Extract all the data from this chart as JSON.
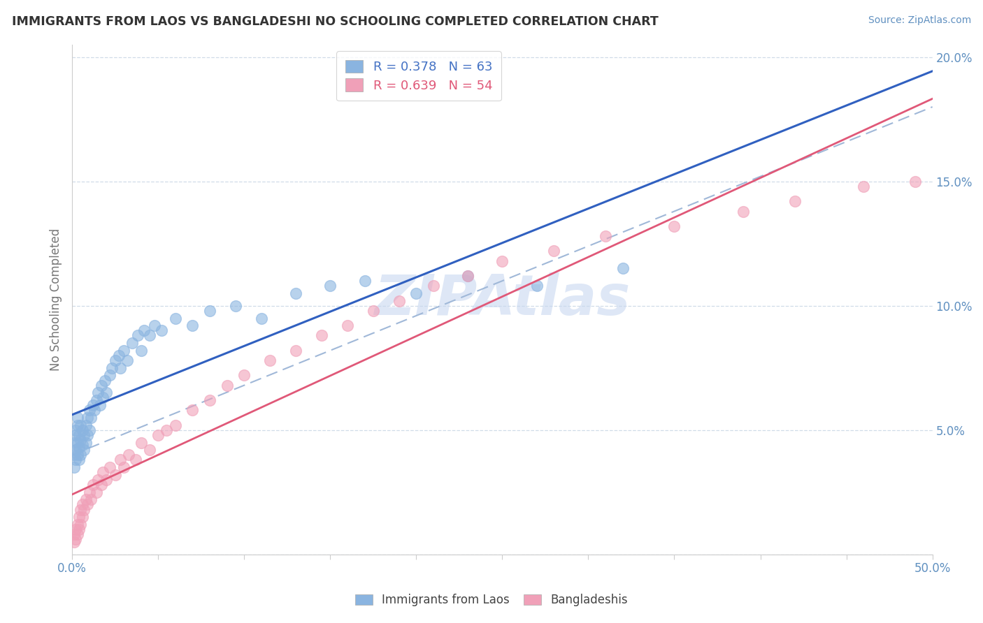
{
  "title": "IMMIGRANTS FROM LAOS VS BANGLADESHI NO SCHOOLING COMPLETED CORRELATION CHART",
  "source": "Source: ZipAtlas.com",
  "ylabel": "No Schooling Completed",
  "xlim": [
    0.0,
    0.5
  ],
  "ylim": [
    0.0,
    0.205
  ],
  "xticks": [
    0.0,
    0.05,
    0.1,
    0.15,
    0.2,
    0.25,
    0.3,
    0.35,
    0.4,
    0.45,
    0.5
  ],
  "yticks": [
    0.0,
    0.05,
    0.1,
    0.15,
    0.2
  ],
  "xtick_labels": [
    "0.0%",
    "",
    "",
    "",
    "",
    "",
    "",
    "",
    "",
    "",
    "50.0%"
  ],
  "ytick_labels_right": [
    "",
    "5.0%",
    "10.0%",
    "15.0%",
    "20.0%"
  ],
  "series1_label": "Immigrants from Laos",
  "series1_color": "#8ab4e0",
  "series1_line_color": "#3060c0",
  "series1_R": 0.378,
  "series1_N": 63,
  "series2_label": "Bangladeshis",
  "series2_color": "#f0a0b8",
  "series2_line_color": "#e05878",
  "series2_R": 0.639,
  "series2_N": 54,
  "dashed_line_color": "#a0b8d8",
  "watermark": "ZIPAtlas",
  "watermark_color": "#c8d8f0",
  "legend_color_1": "#4472c4",
  "legend_color_2": "#e05878",
  "title_color": "#333333",
  "axis_label_color": "#777777",
  "tick_color": "#6090c0",
  "grid_color": "#d0dce8",
  "laos_x": [
    0.001,
    0.001,
    0.001,
    0.002,
    0.002,
    0.002,
    0.002,
    0.003,
    0.003,
    0.003,
    0.003,
    0.004,
    0.004,
    0.004,
    0.005,
    0.005,
    0.005,
    0.006,
    0.006,
    0.007,
    0.007,
    0.008,
    0.008,
    0.009,
    0.009,
    0.01,
    0.01,
    0.011,
    0.012,
    0.013,
    0.014,
    0.015,
    0.016,
    0.017,
    0.018,
    0.019,
    0.02,
    0.022,
    0.023,
    0.025,
    0.027,
    0.028,
    0.03,
    0.032,
    0.035,
    0.038,
    0.04,
    0.042,
    0.045,
    0.048,
    0.052,
    0.06,
    0.07,
    0.08,
    0.095,
    0.11,
    0.13,
    0.15,
    0.17,
    0.2,
    0.23,
    0.27,
    0.32
  ],
  "laos_y": [
    0.035,
    0.04,
    0.045,
    0.038,
    0.042,
    0.048,
    0.05,
    0.04,
    0.045,
    0.052,
    0.055,
    0.038,
    0.043,
    0.048,
    0.04,
    0.046,
    0.052,
    0.044,
    0.05,
    0.042,
    0.048,
    0.045,
    0.052,
    0.048,
    0.055,
    0.05,
    0.058,
    0.055,
    0.06,
    0.058,
    0.062,
    0.065,
    0.06,
    0.068,
    0.063,
    0.07,
    0.065,
    0.072,
    0.075,
    0.078,
    0.08,
    0.075,
    0.082,
    0.078,
    0.085,
    0.088,
    0.082,
    0.09,
    0.088,
    0.092,
    0.09,
    0.095,
    0.092,
    0.098,
    0.1,
    0.095,
    0.105,
    0.108,
    0.11,
    0.105,
    0.112,
    0.108,
    0.115
  ],
  "bangladeshi_x": [
    0.001,
    0.001,
    0.002,
    0.002,
    0.003,
    0.003,
    0.004,
    0.004,
    0.005,
    0.005,
    0.006,
    0.006,
    0.007,
    0.008,
    0.009,
    0.01,
    0.011,
    0.012,
    0.014,
    0.015,
    0.017,
    0.018,
    0.02,
    0.022,
    0.025,
    0.028,
    0.03,
    0.033,
    0.037,
    0.04,
    0.045,
    0.05,
    0.055,
    0.06,
    0.07,
    0.08,
    0.09,
    0.1,
    0.115,
    0.13,
    0.145,
    0.16,
    0.175,
    0.19,
    0.21,
    0.23,
    0.25,
    0.28,
    0.31,
    0.35,
    0.39,
    0.42,
    0.46,
    0.49
  ],
  "bangladeshi_y": [
    0.005,
    0.008,
    0.006,
    0.01,
    0.008,
    0.012,
    0.01,
    0.015,
    0.012,
    0.018,
    0.015,
    0.02,
    0.018,
    0.022,
    0.02,
    0.025,
    0.022,
    0.028,
    0.025,
    0.03,
    0.028,
    0.033,
    0.03,
    0.035,
    0.032,
    0.038,
    0.035,
    0.04,
    0.038,
    0.045,
    0.042,
    0.048,
    0.05,
    0.052,
    0.058,
    0.062,
    0.068,
    0.072,
    0.078,
    0.082,
    0.088,
    0.092,
    0.098,
    0.102,
    0.108,
    0.112,
    0.118,
    0.122,
    0.128,
    0.132,
    0.138,
    0.142,
    0.148,
    0.15
  ]
}
